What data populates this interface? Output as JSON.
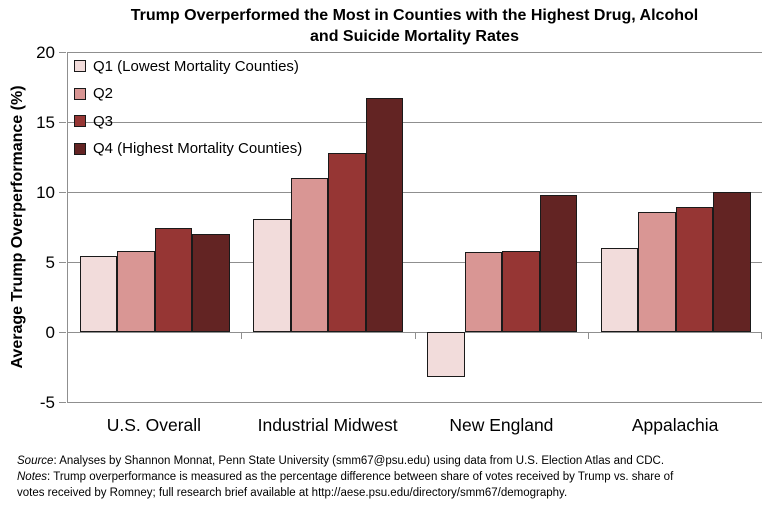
{
  "title": {
    "line1": "Trump Overperformed the Most in Counties with the Highest Drug, Alcohol",
    "line2": "and Suicide Mortality Rates"
  },
  "y_axis": {
    "label": "Average Trump Overperformance (%)",
    "ticks": [
      20,
      15,
      10,
      5,
      0,
      -5
    ],
    "min": -5,
    "max": 20
  },
  "legend": {
    "items": [
      {
        "label": "Q1 (Lowest Mortality Counties)",
        "color": "#f2dcdb"
      },
      {
        "label": "Q2",
        "color": "#d99694"
      },
      {
        "label": "Q3",
        "color": "#963634"
      },
      {
        "label": "Q4 (Highest Mortality Counties)",
        "color": "#632423"
      }
    ]
  },
  "chart_data": {
    "type": "bar",
    "title": "Trump Overperformed the Most in Counties with the Highest Drug, Alcohol and Suicide Mortality Rates",
    "categories": [
      "U.S. Overall",
      "Industrial Midwest",
      "New England",
      "Appalachia"
    ],
    "series": [
      {
        "name": "Q1 (Lowest Mortality Counties)",
        "color": "#f2dcdb",
        "values": [
          5.4,
          8.1,
          -3.2,
          6.0
        ]
      },
      {
        "name": "Q2",
        "color": "#d99694",
        "values": [
          5.8,
          11.0,
          5.7,
          8.6
        ]
      },
      {
        "name": "Q3",
        "color": "#963634",
        "values": [
          7.4,
          12.8,
          5.8,
          8.9
        ]
      },
      {
        "name": "Q4 (Highest Mortality Counties)",
        "color": "#632423",
        "values": [
          7.0,
          16.7,
          9.8,
          10.0
        ]
      }
    ],
    "xlabel": "",
    "ylabel": "Average Trump Overperformance (%)",
    "ylim": [
      -5,
      20
    ],
    "grid": true,
    "legend_position": "top-left-inside"
  },
  "footnotes": {
    "source_label": "Source",
    "source_text": ": Analyses by Shannon Monnat, Penn State University (smm67@psu.edu) using data from U.S. Election Atlas and CDC.",
    "notes_label": "Notes",
    "notes_text_line1": ": Trump overperformance is measured as the percentage difference between  share of votes received by Trump vs. share of",
    "notes_text_line2": "votes received by Romney;  full research brief available at http://aese.psu.edu/directory/smm67/demography."
  },
  "colors": {
    "background": "#ffffff",
    "gridline": "#8f8f8f",
    "axis": "#8f8f8f",
    "bar_border": "#1a1a1a",
    "text": "#000000"
  }
}
